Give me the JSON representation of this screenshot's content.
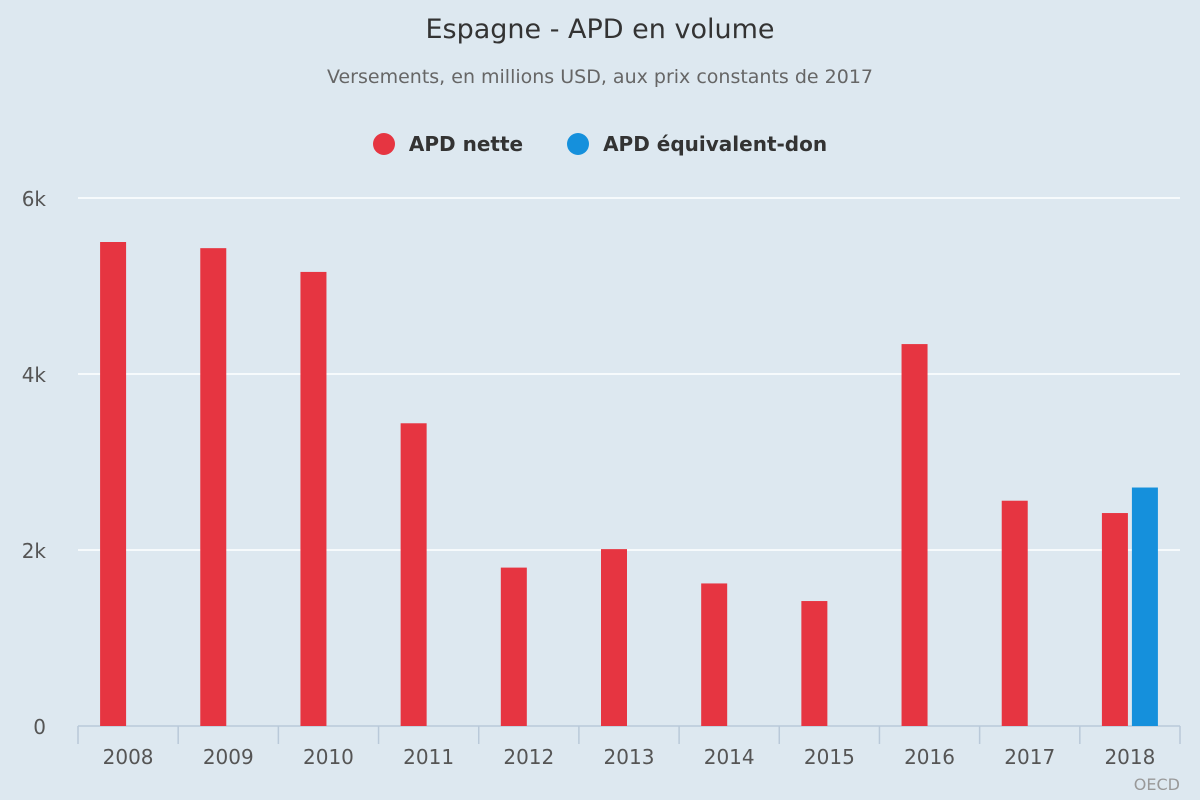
{
  "chart_data": {
    "type": "bar",
    "title": "Espagne - APD en volume",
    "subtitle": "Versements, en millions USD, aux prix constants de 2017",
    "categories": [
      "2008",
      "2009",
      "2010",
      "2011",
      "2012",
      "2013",
      "2014",
      "2015",
      "2016",
      "2017",
      "2018"
    ],
    "series": [
      {
        "name": "APD nette",
        "color": "#e63541",
        "values": [
          5500,
          5430,
          5160,
          3440,
          1800,
          2010,
          1620,
          1420,
          4340,
          2560,
          2420
        ]
      },
      {
        "name": "APD équivalent-don",
        "color": "#1590dc",
        "values": [
          null,
          null,
          null,
          null,
          null,
          null,
          null,
          null,
          null,
          null,
          2710
        ]
      }
    ],
    "ylim": [
      0,
      6000
    ],
    "yticks": [
      {
        "value": 0,
        "label": "0"
      },
      {
        "value": 2000,
        "label": "2k"
      },
      {
        "value": 4000,
        "label": "4k"
      },
      {
        "value": 6000,
        "label": "6k"
      }
    ],
    "grid": true,
    "legend_position": "top-center"
  },
  "credit": "OECD"
}
